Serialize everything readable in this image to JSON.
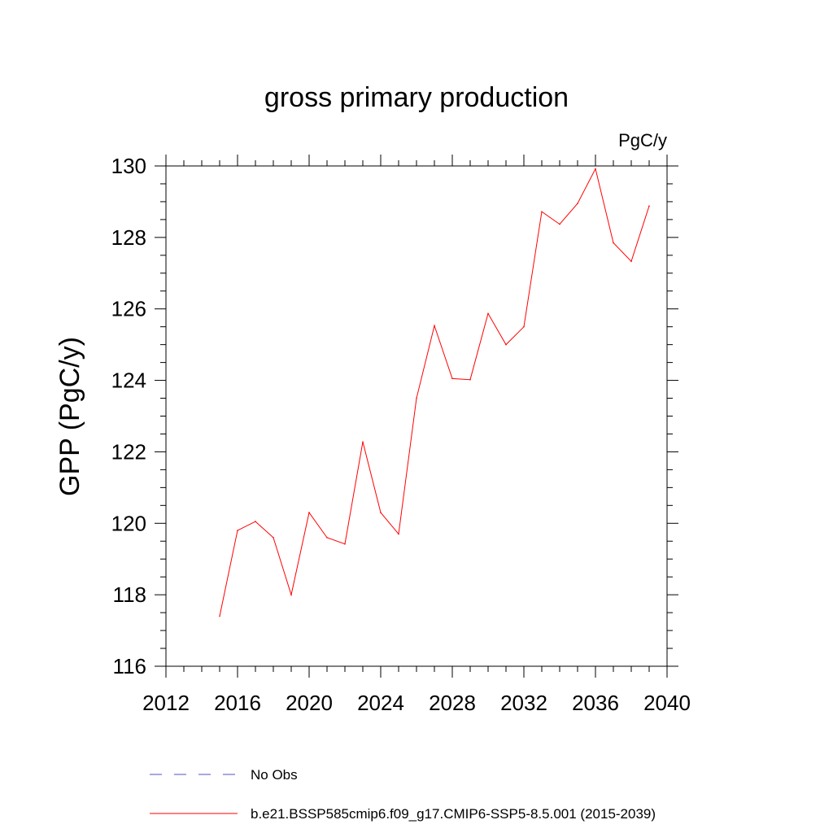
{
  "chart_data": {
    "type": "line",
    "title": "gross primary production",
    "units_label": "PgC/y",
    "xlabel": "",
    "ylabel": "GPP  (PgC/y)",
    "xlim": [
      2012,
      2040
    ],
    "ylim": [
      116,
      130
    ],
    "x_ticks": [
      2012,
      2016,
      2020,
      2024,
      2028,
      2032,
      2036,
      2040
    ],
    "y_ticks": [
      116,
      118,
      120,
      122,
      124,
      126,
      128,
      130
    ],
    "x_tick_labels": [
      "2012",
      "2016",
      "2020",
      "2024",
      "2028",
      "2032",
      "2036",
      "2040"
    ],
    "y_tick_labels": [
      "116",
      "118",
      "120",
      "122",
      "124",
      "126",
      "128",
      "130"
    ],
    "grid": false,
    "legend_position": "bottom",
    "series": [
      {
        "name": "b.e21.BSSP585cmip6.f09_g17.CMIP6-SSP5-8.5.001 (2015-2039)",
        "color": "#ff0000",
        "style": "solid",
        "x": [
          2015,
          2016,
          2017,
          2018,
          2019,
          2020,
          2021,
          2022,
          2023,
          2024,
          2025,
          2026,
          2027,
          2028,
          2029,
          2030,
          2031,
          2032,
          2033,
          2034,
          2035,
          2036,
          2037,
          2038,
          2039
        ],
        "values": [
          117.4,
          119.8,
          120.05,
          119.6,
          118.0,
          120.3,
          119.6,
          119.42,
          122.28,
          120.3,
          119.7,
          123.5,
          125.53,
          124.05,
          124.02,
          125.87,
          125.0,
          125.5,
          128.72,
          128.37,
          128.95,
          129.92,
          127.85,
          127.33,
          128.88
        ]
      }
    ],
    "legend": [
      {
        "label": "No Obs",
        "color": "#5050c0",
        "style": "dashed"
      },
      {
        "label": "b.e21.BSSP585cmip6.f09_g17.CMIP6-SSP5-8.5.001 (2015-2039)",
        "color": "#ff0000",
        "style": "solid"
      }
    ]
  }
}
